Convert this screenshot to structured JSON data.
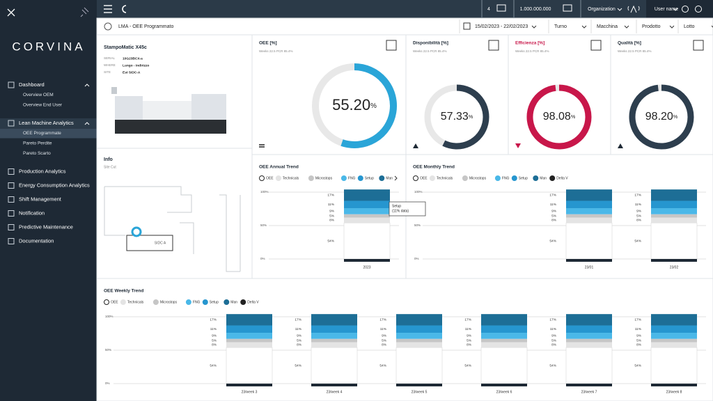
{
  "sidebar": {
    "logo": "CORVINA",
    "nav": [
      {
        "label": "Dashboard",
        "children": [
          "Overview OEM",
          "Overview End User"
        ]
      },
      {
        "label": "Lean Machine Analytics",
        "children": [
          "OEE Programmate",
          "Pareto Perdite",
          "Pareto Scarto"
        ]
      },
      {
        "label": "Production Analytics"
      },
      {
        "label": "Energy Consumption Analytics"
      },
      {
        "label": "Shift Management"
      },
      {
        "label": "Notification"
      },
      {
        "label": "Predictive Maintenance"
      },
      {
        "label": "Documentation"
      }
    ]
  },
  "topbar": {
    "count": "4",
    "value": "1.000.000.000",
    "organization": "Organization",
    "user": "User name"
  },
  "breadcrumb": "LMA - OEE Programmato",
  "date_range": "15/02/2023 - 22/02/2023",
  "filters": [
    "Turno",
    "Macchina",
    "Prodotto",
    "Lotto"
  ],
  "machine": {
    "name": "StampoMatic X45c",
    "fields": [
      [
        "SERIAL",
        "10G23BCX-a"
      ],
      [
        "WHERE",
        "Lungo - Indirizzo"
      ],
      [
        "SITE",
        "Est SIDC-A"
      ]
    ]
  },
  "info": {
    "title": "Info",
    "subtitle": "Site Cut",
    "area": "SIDC A"
  },
  "gauges": [
    {
      "title": "OEE [%]",
      "subtitle": "Weeks 22.5 PCR 85.4%",
      "value": 55.2,
      "value_label": "55.20",
      "unit": "%",
      "color": "#2aa5d8",
      "title_color": "#1e2935"
    },
    {
      "title": "Disponibilità [%]",
      "subtitle": "Weeks 22.5 PCR 85.4%",
      "value": 57.33,
      "value_label": "57.33",
      "unit": "%",
      "color": "#2d3e4e",
      "title_color": "#1e2935"
    },
    {
      "title": "Efficienza [%]",
      "subtitle": "Weeks 22.5 PCR 85.4%",
      "value": 98.08,
      "value_label": "98.08",
      "unit": "%",
      "color": "#c8174a",
      "title_color": "#c8174a"
    },
    {
      "title": "Qualità [%]",
      "subtitle": "Weeks 22.5 PCR 85.4%",
      "value": 98.2,
      "value_label": "98.20",
      "unit": "%",
      "color": "#2d3e4e",
      "title_color": "#1e2935"
    }
  ],
  "trends": [
    {
      "title": "OEE Annual Trend",
      "ylim": [
        0,
        105
      ],
      "yticks": [
        {
          "value": 0,
          "label": "0%"
        },
        {
          "value": 50,
          "label": "50%"
        },
        {
          "value": 100,
          "label": "100%"
        }
      ],
      "categories": [
        "2023"
      ],
      "tooltip": [
        "Setup",
        "(11% data)"
      ],
      "series": [
        {
          "name": "OEE",
          "color": "#ffffff",
          "values": [
            54
          ],
          "value_labels": [
            "54%"
          ]
        },
        {
          "name": "Technicals",
          "color": "#e4e4e4",
          "values": [
            8
          ],
          "value_labels": [
            "8%"
          ]
        },
        {
          "name": "Microstops",
          "color": "#c6c6c6",
          "values": [
            5
          ],
          "value_labels": [
            "5%"
          ]
        },
        {
          "name": "FNG",
          "color": "#4ab8e8",
          "values": [
            9
          ],
          "value_labels": [
            "9%"
          ]
        },
        {
          "name": "Setup",
          "color": "#2696cf",
          "values": [
            11
          ],
          "value_labels": [
            "11%"
          ]
        },
        {
          "name": "Man",
          "color": "#1d6e96",
          "values": [
            17
          ],
          "value_labels": [
            "17%"
          ]
        }
      ]
    },
    {
      "title": "OEE Monthly Trend",
      "ylim": [
        0,
        105
      ],
      "yticks": [
        {
          "value": 0,
          "label": "0%"
        },
        {
          "value": 50,
          "label": "50%"
        },
        {
          "value": 100,
          "label": "100%"
        }
      ],
      "categories": [
        "23/01",
        "23/02"
      ],
      "series": [
        {
          "name": "OEE",
          "color": "#ffffff",
          "values": [
            54,
            54
          ],
          "value_labels": [
            "54%",
            "54%"
          ]
        },
        {
          "name": "Technicals",
          "color": "#e4e4e4",
          "values": [
            8,
            8
          ],
          "value_labels": [
            "8%",
            "8%"
          ]
        },
        {
          "name": "Microstops",
          "color": "#c6c6c6",
          "values": [
            5,
            5
          ],
          "value_labels": [
            "5%",
            "5%"
          ]
        },
        {
          "name": "FNG",
          "color": "#4ab8e8",
          "values": [
            9,
            9
          ],
          "value_labels": [
            "9%",
            "9%"
          ]
        },
        {
          "name": "Setup",
          "color": "#2696cf",
          "values": [
            11,
            11
          ],
          "value_labels": [
            "11%",
            "11%"
          ]
        },
        {
          "name": "Man",
          "color": "#1d6e96",
          "values": [
            17,
            17
          ],
          "value_labels": [
            "17%",
            "17%"
          ]
        },
        {
          "name": "Delta V",
          "color": "#222222",
          "values": [
            null,
            null
          ]
        }
      ]
    },
    {
      "title": "OEE Weekly Trend",
      "ylim": [
        0,
        105
      ],
      "yticks": [
        {
          "value": 0,
          "label": "0%"
        },
        {
          "value": 50,
          "label": "50%"
        },
        {
          "value": 100,
          "label": "100%"
        }
      ],
      "categories": [
        "23/week 3",
        "23/week 4",
        "23/week 5",
        "23/week 6",
        "23/week 7",
        "23/week 8"
      ],
      "series": [
        {
          "name": "OEE",
          "color": "#ffffff",
          "values": [
            54,
            54,
            54,
            54,
            54,
            54
          ],
          "value_labels": [
            "54%",
            "54%",
            "54%",
            "54%",
            "54%",
            "54%"
          ]
        },
        {
          "name": "Technicals",
          "color": "#e4e4e4",
          "values": [
            8,
            8,
            8,
            8,
            8,
            8
          ],
          "value_labels": [
            "8%",
            "8%",
            "8%",
            "8%",
            "8%",
            "8%"
          ]
        },
        {
          "name": "Microstops",
          "color": "#c6c6c6",
          "values": [
            5,
            5,
            5,
            5,
            5,
            5
          ],
          "value_labels": [
            "5%",
            "5%",
            "5%",
            "5%",
            "5%",
            "5%"
          ]
        },
        {
          "name": "FNG",
          "color": "#4ab8e8",
          "values": [
            9,
            9,
            9,
            9,
            9,
            9
          ],
          "value_labels": [
            "9%",
            "9%",
            "9%",
            "9%",
            "9%",
            "9%"
          ]
        },
        {
          "name": "Setup",
          "color": "#2696cf",
          "values": [
            11,
            11,
            11,
            11,
            11,
            11
          ],
          "value_labels": [
            "11%",
            "11%",
            "11%",
            "11%",
            "11%",
            "11%"
          ]
        },
        {
          "name": "Man",
          "color": "#1d6e96",
          "values": [
            17,
            17,
            17,
            17,
            17,
            17
          ],
          "value_labels": [
            "17%",
            "17%",
            "17%",
            "17%",
            "17%",
            "17%"
          ]
        },
        {
          "name": "Delta V",
          "color": "#222222",
          "values": [
            null,
            null,
            null,
            null,
            null,
            null
          ]
        }
      ]
    }
  ]
}
